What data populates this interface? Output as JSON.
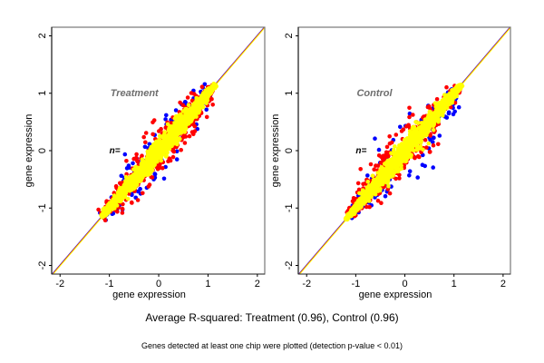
{
  "chart_data": [
    {
      "type": "scatter",
      "panel_title": "Treatment",
      "n_label": "n=",
      "xlabel": "gene expression",
      "ylabel": "gene expression",
      "xlim": [
        -2.17,
        2.15
      ],
      "ylim": [
        -2.15,
        2.15
      ],
      "xticks": [
        -2,
        -1,
        0,
        1,
        2
      ],
      "yticks": [
        -2,
        -1,
        0,
        1,
        2
      ],
      "grid": false,
      "reference_line": {
        "slope": 1,
        "intercept": 0,
        "colors": [
          "#0000ff",
          "#ff0000",
          "#ffff00"
        ]
      },
      "series": [
        {
          "name": "blue",
          "color": "#0000ff",
          "spread": 0.28,
          "count": 140,
          "range": [
            -1.15,
            1.1
          ]
        },
        {
          "name": "red",
          "color": "#ff0000",
          "spread": 0.22,
          "count": 420,
          "range": [
            -1.15,
            1.12
          ]
        },
        {
          "name": "yellow",
          "color": "#ffff00",
          "spread": 0.1,
          "count": 1400,
          "range": [
            -1.15,
            1.15
          ]
        }
      ]
    },
    {
      "type": "scatter",
      "panel_title": "Control",
      "n_label": "n=",
      "xlabel": "gene expression",
      "ylabel": "gene expression",
      "xlim": [
        -2.17,
        2.15
      ],
      "ylim": [
        -2.15,
        2.15
      ],
      "xticks": [
        -2,
        -1,
        0,
        1,
        2
      ],
      "yticks": [
        -2,
        -1,
        0,
        1,
        2
      ],
      "grid": false,
      "reference_line": {
        "slope": 1,
        "intercept": 0,
        "colors": [
          "#0000ff",
          "#ff0000",
          "#ffff00"
        ]
      },
      "series": [
        {
          "name": "blue",
          "color": "#0000ff",
          "spread": 0.28,
          "count": 140,
          "range": [
            -1.15,
            1.1
          ]
        },
        {
          "name": "red",
          "color": "#ff0000",
          "spread": 0.22,
          "count": 420,
          "range": [
            -1.15,
            1.12
          ]
        },
        {
          "name": "yellow",
          "color": "#ffff00",
          "spread": 0.1,
          "count": 1400,
          "range": [
            -1.2,
            1.15
          ]
        }
      ]
    }
  ],
  "captions": {
    "main": "Average R-squared: Treatment (0.96), Control (0.96)",
    "sub": "Genes detected at least one chip were plotted (detection p-value < 0.01)"
  }
}
